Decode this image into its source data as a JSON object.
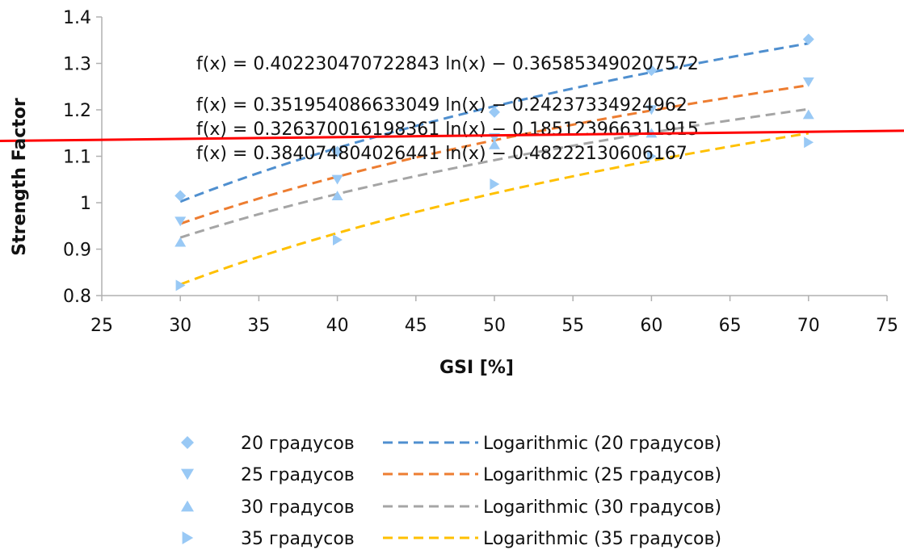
{
  "chart_data": {
    "type": "scatter",
    "xlabel": "GSI [%]",
    "ylabel": "Strength Factor",
    "xlim": [
      25,
      75
    ],
    "ylim": [
      0.8,
      1.4
    ],
    "x_ticks": [
      "25",
      "30",
      "35",
      "40",
      "45",
      "50",
      "55",
      "60",
      "65",
      "70",
      "75"
    ],
    "y_ticks": [
      "0.8",
      "0.9",
      "1",
      "1.1",
      "1.2",
      "1.3",
      "1.4"
    ],
    "grid": false,
    "legend_position": "bottom",
    "marker_color": "#99c9f5",
    "series": [
      {
        "name": "20 градусов",
        "marker": "diamond",
        "x": [
          30,
          40,
          50,
          60,
          70
        ],
        "y": [
          1.015,
          1.11,
          1.195,
          1.285,
          1.352
        ],
        "trend_label": "Logarithmic (20 градусов)",
        "trend_color": "#4f8fcf",
        "trend_equation": "f(x) = 0.402230470722843 ln(x) − 0.365853490207572",
        "trend_a": 0.402230470722843,
        "trend_b": -0.365853490207572
      },
      {
        "name": "25 градусов",
        "marker": "triangle-down",
        "x": [
          30,
          40,
          50,
          60,
          70
        ],
        "y": [
          0.96,
          1.05,
          1.14,
          1.2,
          1.26
        ],
        "trend_label": "Logarithmic (25 градусов)",
        "trend_color": "#ed7d31",
        "trend_equation": "f(x) = 0.351954086633049 ln(x) − 0.24237334924962",
        "trend_a": 0.351954086633049,
        "trend_b": -0.24237334924962
      },
      {
        "name": "30 градусов",
        "marker": "triangle-up",
        "x": [
          30,
          40,
          50,
          60,
          70
        ],
        "y": [
          0.915,
          1.015,
          1.125,
          1.15,
          1.19
        ],
        "trend_label": "Logarithmic (30 градусов)",
        "trend_color": "#a5a5a5",
        "trend_equation": "f(x) = 0.326370016198361 ln(x) − 0.185123966311915",
        "trend_a": 0.326370016198361,
        "trend_b": -0.185123966311915
      },
      {
        "name": "35 градусов",
        "marker": "triangle-right",
        "x": [
          30,
          40,
          50,
          60,
          70
        ],
        "y": [
          0.822,
          0.92,
          1.04,
          1.1,
          1.13
        ],
        "trend_label": "Logarithmic (35 градусов)",
        "trend_color": "#ffc000",
        "trend_equation": "f(x) = 0.384074804026441 ln(x) − 0.48222130606167",
        "trend_a": 0.384074804026441,
        "trend_b": -0.48222130606167
      }
    ],
    "reference_line": {
      "color": "#ff0000",
      "y_start": 1.133,
      "y_end": 1.155
    }
  }
}
